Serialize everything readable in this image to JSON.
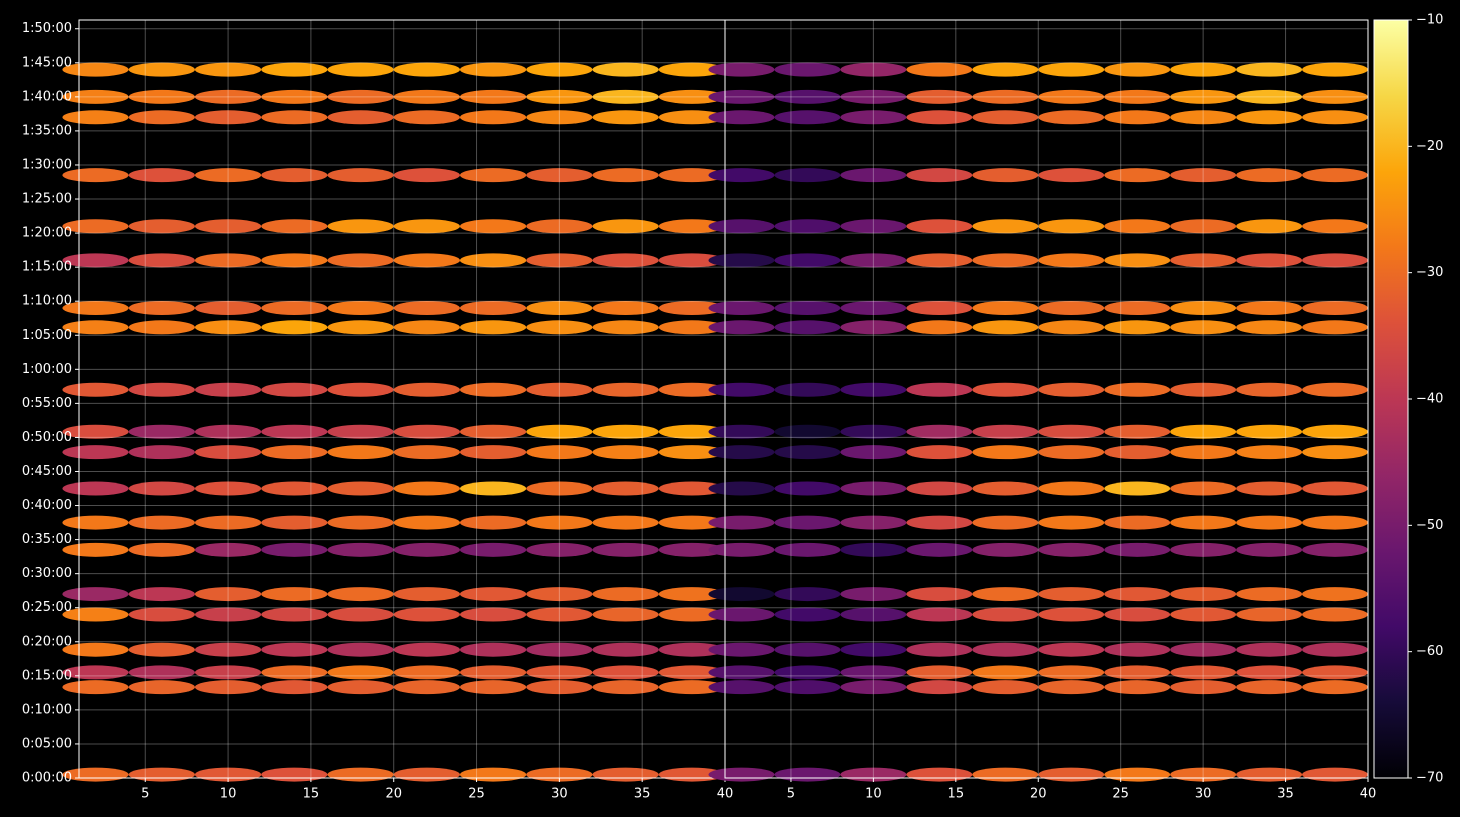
{
  "chart_data": {
    "type": "heatmap",
    "colormap": "inferno",
    "clim": [
      -70,
      -10
    ],
    "cticks": [
      {
        "value": -70,
        "label": "−70"
      },
      {
        "value": -60,
        "label": "−60"
      },
      {
        "value": -50,
        "label": "−50"
      },
      {
        "value": -40,
        "label": "−40"
      },
      {
        "value": -30,
        "label": "−30"
      },
      {
        "value": -20,
        "label": "−20"
      },
      {
        "value": -10,
        "label": "−10"
      }
    ],
    "ylim": [
      0,
      6677
    ],
    "yticks": [
      {
        "value": 0,
        "label": "0:00:00"
      },
      {
        "value": 300,
        "label": "0:05:00"
      },
      {
        "value": 600,
        "label": "0:10:00"
      },
      {
        "value": 900,
        "label": "0:15:00"
      },
      {
        "value": 1200,
        "label": "0:20:00"
      },
      {
        "value": 1500,
        "label": "0:25:00"
      },
      {
        "value": 1800,
        "label": "0:30:00"
      },
      {
        "value": 2100,
        "label": "0:35:00"
      },
      {
        "value": 2400,
        "label": "0:40:00"
      },
      {
        "value": 2700,
        "label": "0:45:00"
      },
      {
        "value": 3000,
        "label": "0:50:00"
      },
      {
        "value": 3300,
        "label": "0:55:00"
      },
      {
        "value": 3600,
        "label": "1:00:00"
      },
      {
        "value": 3900,
        "label": "1:05:00"
      },
      {
        "value": 4200,
        "label": "1:10:00"
      },
      {
        "value": 4500,
        "label": "1:15:00"
      },
      {
        "value": 4800,
        "label": "1:20:00"
      },
      {
        "value": 5100,
        "label": "1:25:00"
      },
      {
        "value": 5400,
        "label": "1:30:00"
      },
      {
        "value": 5700,
        "label": "1:35:00"
      },
      {
        "value": 6000,
        "label": "1:40:00"
      },
      {
        "value": 6300,
        "label": "1:45:00"
      },
      {
        "value": 6600,
        "label": "1:50:00"
      }
    ],
    "grid": true,
    "x": [
      2,
      6,
      10,
      14,
      18,
      22,
      26,
      30,
      34,
      38
    ],
    "y": [
      30,
      800,
      930,
      1130,
      1440,
      1620,
      2010,
      2250,
      2550,
      2870,
      3050,
      3420,
      3970,
      4140,
      4560,
      4860,
      5310,
      5820,
      6000,
      6240
    ],
    "panels": [
      {
        "xlim": [
          1,
          40
        ],
        "xticks": [
          5,
          10,
          15,
          20,
          25,
          30,
          35,
          40
        ],
        "values": [
          [
            -30,
            -32,
            -33,
            -34,
            -30,
            -32,
            -28,
            -30,
            -32,
            -33
          ],
          [
            -30,
            -31,
            -32,
            -33,
            -32,
            -31,
            -31,
            -32,
            -31,
            -30
          ],
          [
            -40,
            -42,
            -38,
            -30,
            -28,
            -30,
            -32,
            -33,
            -34,
            -33
          ],
          [
            -28,
            -32,
            -38,
            -40,
            -42,
            -40,
            -42,
            -44,
            -42,
            -42
          ],
          [
            -27,
            -35,
            -38,
            -36,
            -35,
            -34,
            -35,
            -33,
            -31,
            -30
          ],
          [
            -45,
            -40,
            -32,
            -30,
            -30,
            -32,
            -33,
            -32,
            -30,
            -29
          ],
          [
            -28,
            -30,
            -45,
            -50,
            -48,
            -48,
            -50,
            -48,
            -48,
            -48
          ],
          [
            -28,
            -30,
            -30,
            -32,
            -30,
            -28,
            -30,
            -28,
            -28,
            -28
          ],
          [
            -40,
            -36,
            -34,
            -33,
            -32,
            -28,
            -20,
            -30,
            -32,
            -33
          ],
          [
            -40,
            -42,
            -35,
            -30,
            -28,
            -30,
            -32,
            -28,
            -27,
            -25
          ],
          [
            -35,
            -45,
            -42,
            -40,
            -38,
            -35,
            -32,
            -22,
            -22,
            -22
          ],
          [
            -33,
            -36,
            -38,
            -36,
            -34,
            -32,
            -30,
            -32,
            -31,
            -30
          ],
          [
            -27,
            -28,
            -25,
            -22,
            -24,
            -26,
            -24,
            -25,
            -26,
            -28
          ],
          [
            -28,
            -30,
            -32,
            -30,
            -28,
            -30,
            -30,
            -25,
            -28,
            -30
          ],
          [
            -40,
            -35,
            -30,
            -28,
            -30,
            -28,
            -25,
            -32,
            -34,
            -35
          ],
          [
            -30,
            -32,
            -32,
            -30,
            -24,
            -24,
            -28,
            -30,
            -24,
            -28
          ],
          [
            -30,
            -34,
            -30,
            -32,
            -32,
            -34,
            -30,
            -32,
            -30,
            -30
          ],
          [
            -27,
            -30,
            -32,
            -30,
            -32,
            -30,
            -28,
            -26,
            -24,
            -25
          ],
          [
            -27,
            -28,
            -30,
            -28,
            -30,
            -28,
            -28,
            -24,
            -20,
            -25
          ],
          [
            -26,
            -24,
            -24,
            -22,
            -22,
            -22,
            -24,
            -22,
            -20,
            -22
          ]
        ]
      },
      {
        "xlim": [
          1,
          40
        ],
        "xticks": [
          5,
          10,
          15,
          20,
          25,
          30,
          35,
          40
        ],
        "values": [
          [
            -50,
            -52,
            -45,
            -34,
            -30,
            -32,
            -28,
            -30,
            -32,
            -33
          ],
          [
            -55,
            -56,
            -50,
            -36,
            -32,
            -31,
            -31,
            -32,
            -31,
            -30
          ],
          [
            -55,
            -58,
            -52,
            -32,
            -28,
            -30,
            -32,
            -33,
            -34,
            -33
          ],
          [
            -52,
            -55,
            -58,
            -42,
            -42,
            -40,
            -42,
            -44,
            -42,
            -42
          ],
          [
            -52,
            -58,
            -55,
            -40,
            -35,
            -34,
            -35,
            -33,
            -31,
            -30
          ],
          [
            -65,
            -60,
            -50,
            -35,
            -30,
            -32,
            -33,
            -32,
            -30,
            -29
          ],
          [
            -50,
            -52,
            -60,
            -52,
            -48,
            -48,
            -50,
            -48,
            -48,
            -48
          ],
          [
            -50,
            -52,
            -48,
            -36,
            -30,
            -28,
            -30,
            -28,
            -28,
            -28
          ],
          [
            -62,
            -58,
            -50,
            -36,
            -32,
            -28,
            -20,
            -30,
            -32,
            -33
          ],
          [
            -62,
            -62,
            -52,
            -34,
            -28,
            -30,
            -32,
            -28,
            -27,
            -25
          ],
          [
            -60,
            -65,
            -60,
            -44,
            -38,
            -35,
            -32,
            -22,
            -22,
            -22
          ],
          [
            -58,
            -60,
            -58,
            -40,
            -34,
            -32,
            -30,
            -32,
            -31,
            -30
          ],
          [
            -52,
            -55,
            -48,
            -28,
            -24,
            -26,
            -24,
            -25,
            -26,
            -28
          ],
          [
            -52,
            -55,
            -52,
            -34,
            -28,
            -30,
            -30,
            -25,
            -28,
            -30
          ],
          [
            -62,
            -58,
            -50,
            -32,
            -30,
            -28,
            -25,
            -32,
            -34,
            -35
          ],
          [
            -55,
            -56,
            -52,
            -34,
            -24,
            -24,
            -28,
            -30,
            -24,
            -28
          ],
          [
            -58,
            -60,
            -52,
            -36,
            -32,
            -34,
            -30,
            -32,
            -30,
            -30
          ],
          [
            -52,
            -55,
            -50,
            -34,
            -32,
            -30,
            -28,
            -26,
            -24,
            -25
          ],
          [
            -52,
            -55,
            -50,
            -32,
            -30,
            -28,
            -28,
            -24,
            -20,
            -25
          ],
          [
            -50,
            -52,
            -46,
            -28,
            -22,
            -22,
            -24,
            -22,
            -20,
            -22
          ]
        ]
      }
    ]
  }
}
